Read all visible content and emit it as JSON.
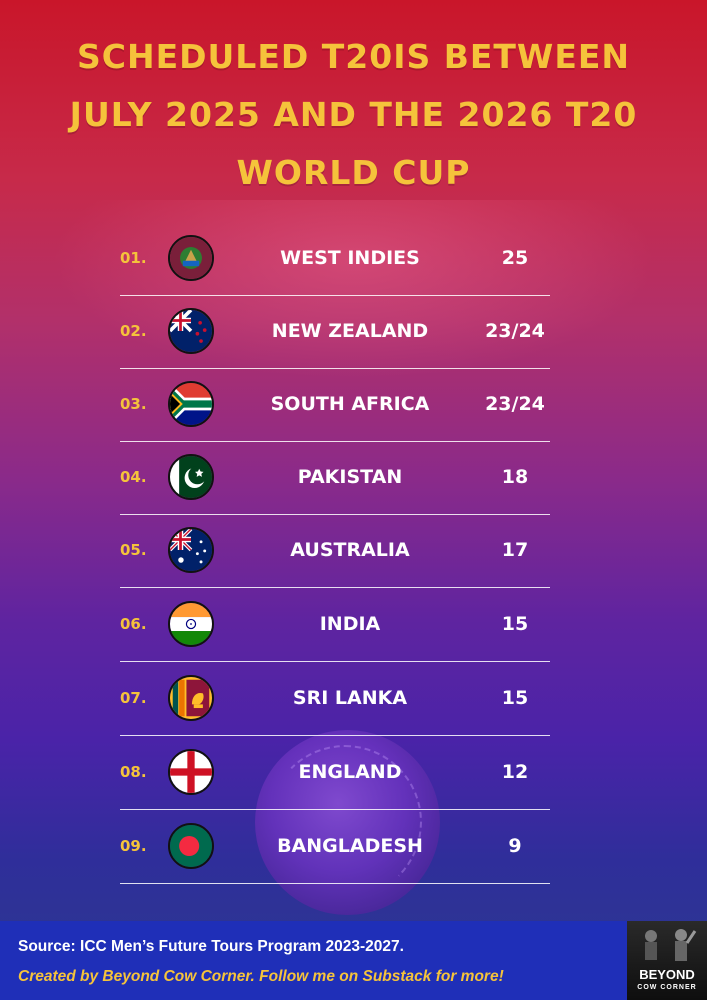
{
  "title": "SCHEDULED T20IS BETWEEN JULY 2025 AND THE 2026 T20 WORLD CUP",
  "rankings": [
    {
      "rank": "01.",
      "team": "WEST INDIES",
      "count": "25",
      "flag_icon": "west-indies-flag-icon"
    },
    {
      "rank": "02.",
      "team": "NEW ZEALAND",
      "count": "23/24",
      "flag_icon": "new-zealand-flag-icon"
    },
    {
      "rank": "03.",
      "team": "SOUTH AFRICA",
      "count": "23/24",
      "flag_icon": "south-africa-flag-icon"
    },
    {
      "rank": "04.",
      "team": "PAKISTAN",
      "count": "18",
      "flag_icon": "pakistan-flag-icon"
    },
    {
      "rank": "05.",
      "team": "AUSTRALIA",
      "count": "17",
      "flag_icon": "australia-flag-icon"
    },
    {
      "rank": "06.",
      "team": "INDIA",
      "count": "15",
      "flag_icon": "india-flag-icon"
    },
    {
      "rank": "07.",
      "team": "SRI LANKA",
      "count": "15",
      "flag_icon": "sri-lanka-flag-icon"
    },
    {
      "rank": "08.",
      "team": "ENGLAND",
      "count": "12",
      "flag_icon": "england-flag-icon"
    },
    {
      "rank": "09.",
      "team": "BANGLADESH",
      "count": "9",
      "flag_icon": "bangladesh-flag-icon"
    }
  ],
  "footer": {
    "source": "Source: ICC Men’s Future Tours Program 2023-2027.",
    "credit": "Created by Beyond Cow Corner. Follow me on Substack for more!",
    "logo_line1": "BEYOND",
    "logo_line2": "COW CORNER"
  },
  "colors": {
    "accent": "#f5c33b",
    "footer_bg": "#1f2fb8"
  }
}
